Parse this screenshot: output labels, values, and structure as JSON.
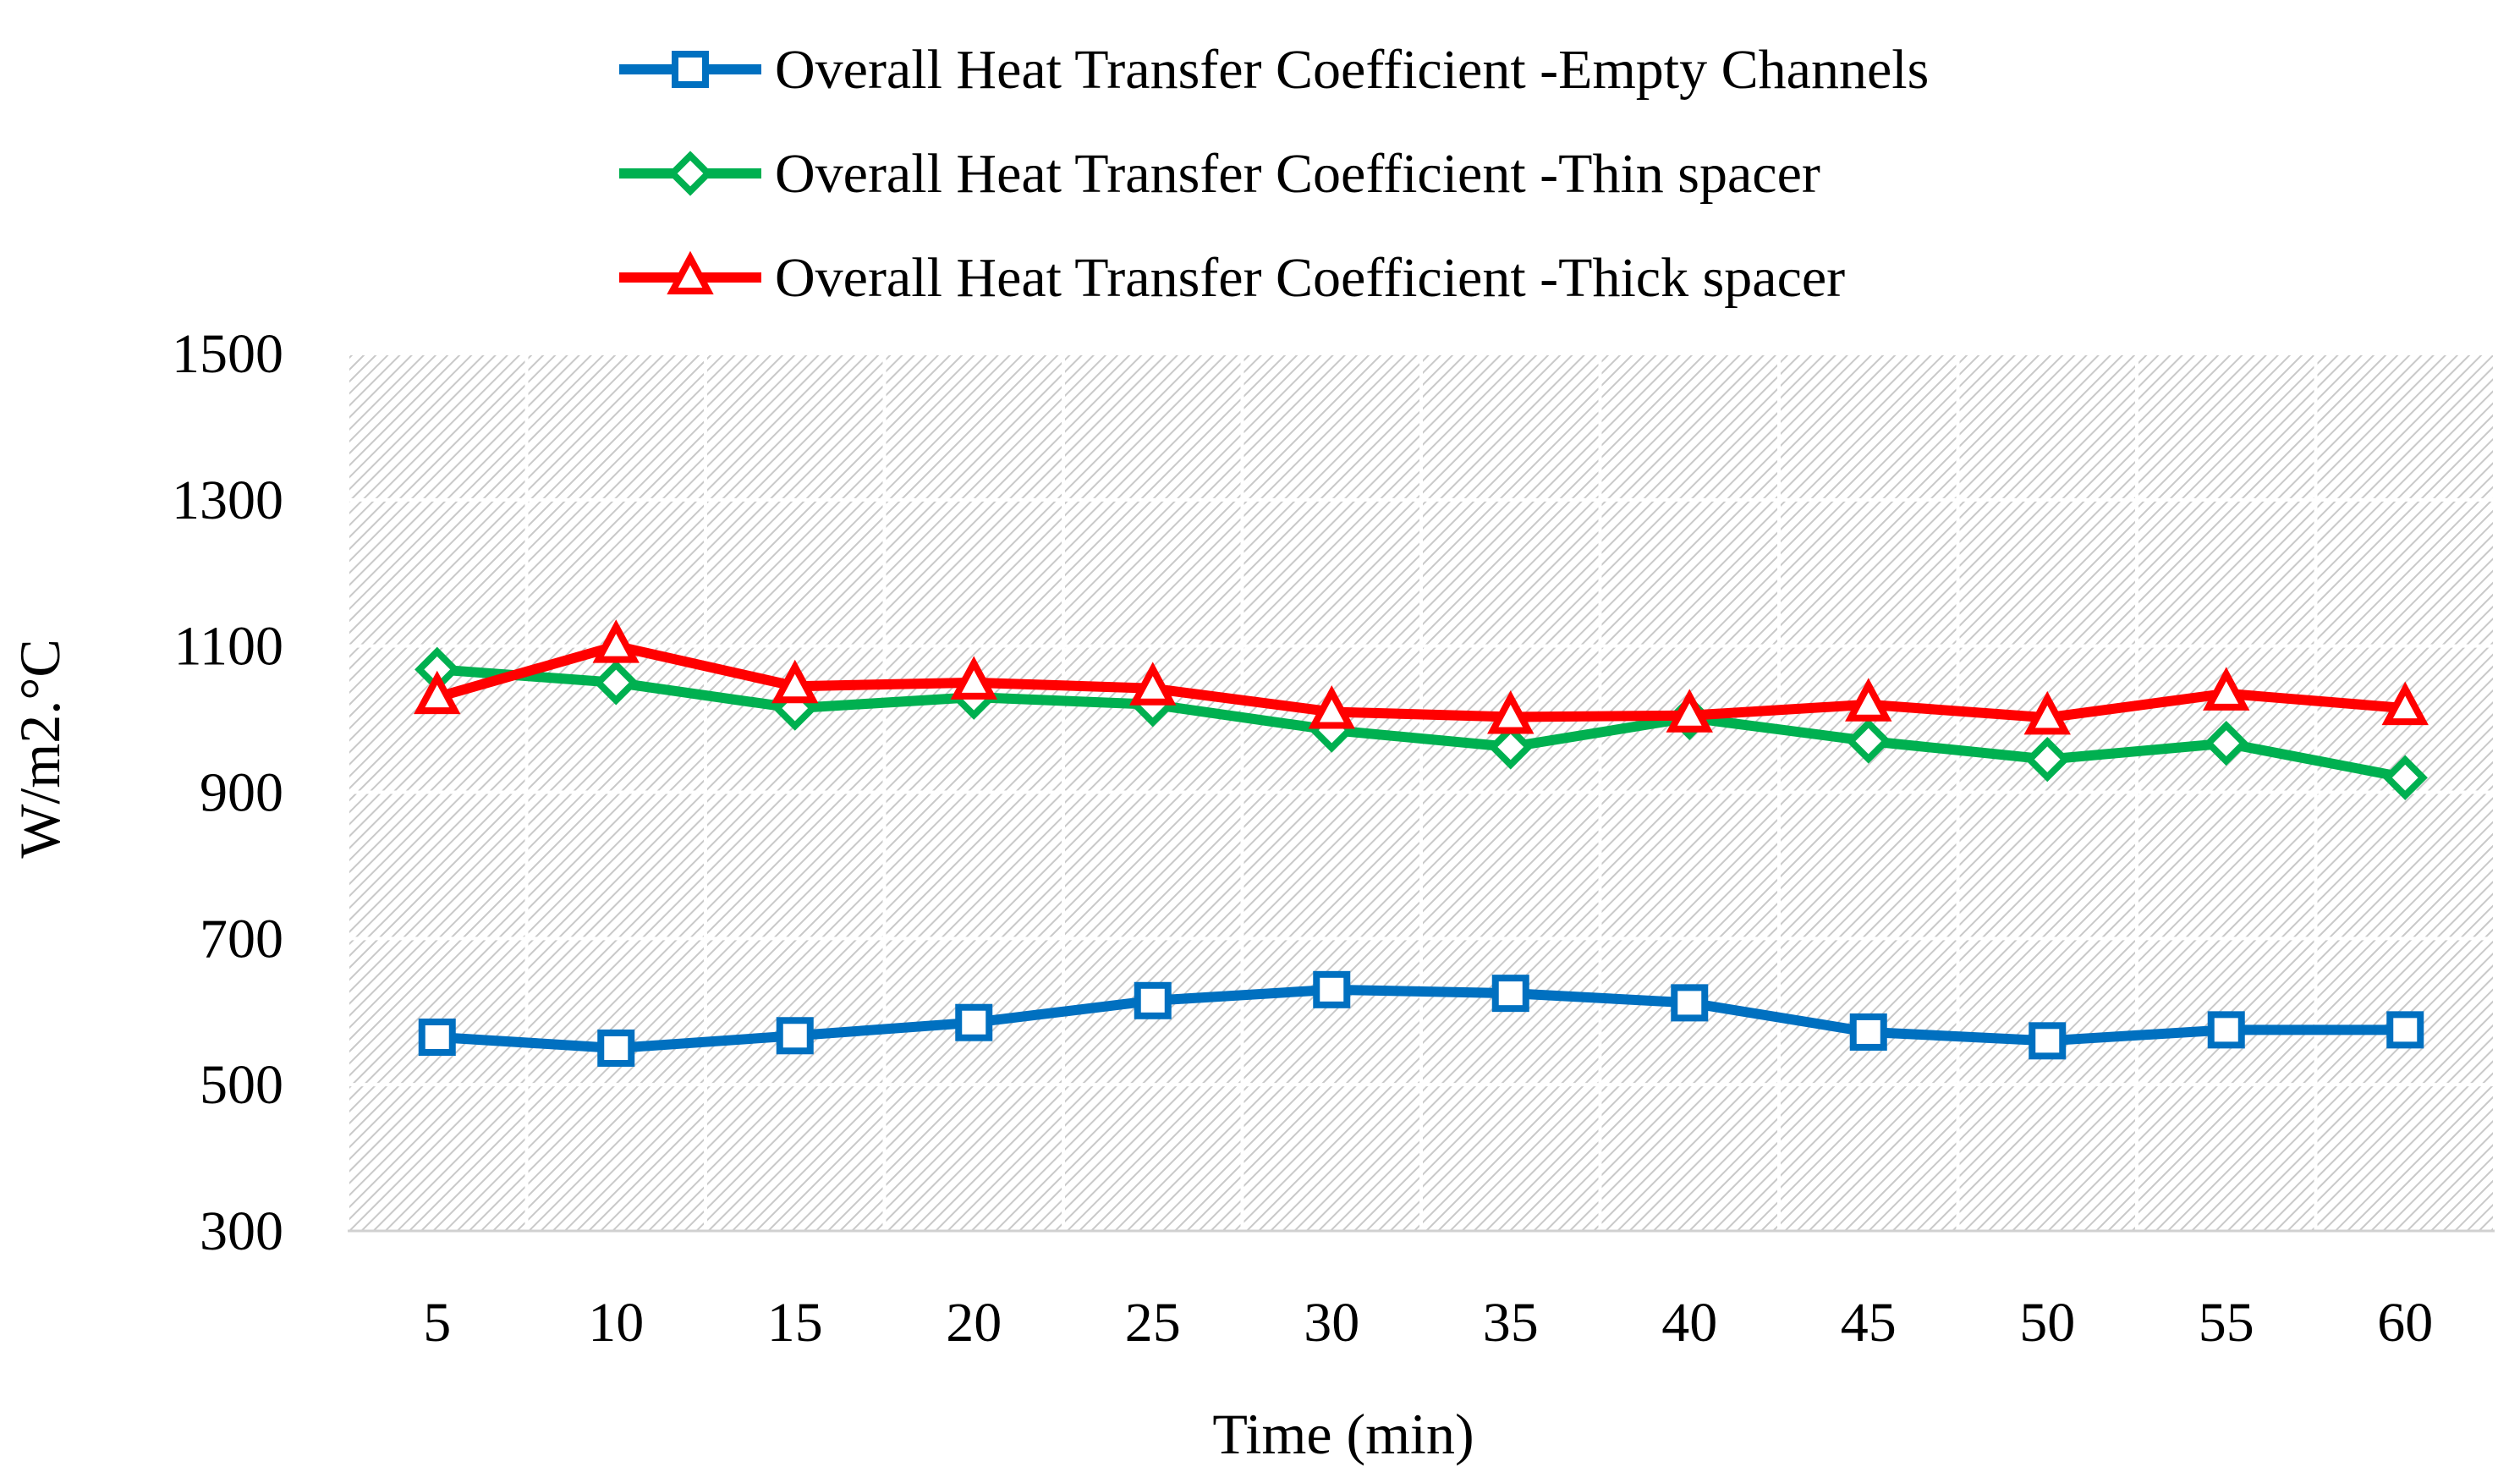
{
  "chart_data": {
    "type": "line",
    "title": "",
    "xlabel": "Time (min)",
    "ylabel": "W/m2.°C",
    "categories": [
      "5",
      "10",
      "15",
      "20",
      "25",
      "30",
      "35",
      "40",
      "45",
      "50",
      "55",
      "60"
    ],
    "ylim": [
      300,
      1500
    ],
    "yticks": [
      "300",
      "500",
      "700",
      "900",
      "1100",
      "1300",
      "1500"
    ],
    "grid": true,
    "legend_position": "top",
    "series": [
      {
        "name": "Overall Heat Transfer Coefficient -Empty Channels",
        "color": "#0070C0",
        "marker": "square",
        "values": [
          565,
          550,
          567,
          585,
          615,
          630,
          625,
          612,
          572,
          560,
          575,
          575
        ]
      },
      {
        "name": "Overall Heat Transfer Coefficient -Thin spacer",
        "color": "#00B050",
        "marker": "diamond",
        "values": [
          1068,
          1050,
          1015,
          1030,
          1020,
          985,
          962,
          1002,
          970,
          945,
          967,
          920
        ]
      },
      {
        "name": "Overall Heat Transfer Coefficient  -Thick spacer",
        "color": "#FF0000",
        "marker": "triangle",
        "values": [
          1030,
          1100,
          1045,
          1050,
          1042,
          1010,
          1003,
          1005,
          1020,
          1002,
          1035,
          1015
        ]
      }
    ]
  }
}
